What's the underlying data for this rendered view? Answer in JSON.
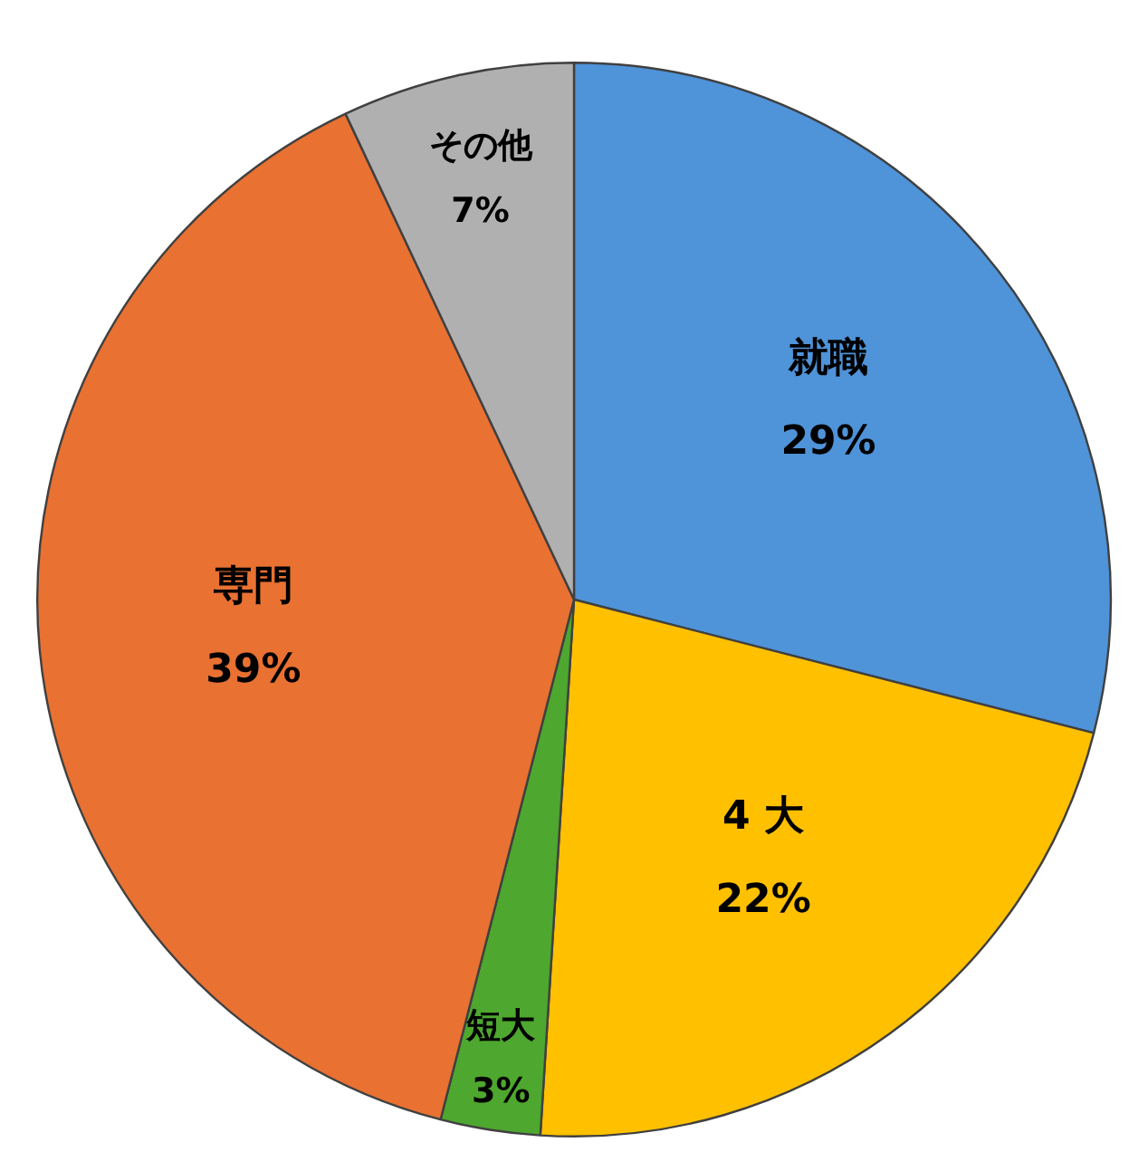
{
  "chart_data": {
    "type": "pie",
    "categories": [
      "就職",
      "4 大",
      "短大",
      "専門",
      "その他"
    ],
    "values": [
      29,
      22,
      3,
      39,
      7
    ],
    "colors": [
      "#4f93d9",
      "#ffc000",
      "#4ea72e",
      "#e97132",
      "#b0b0b0"
    ],
    "value_labels": [
      "29%",
      "22%",
      "3%",
      "39%",
      "7%"
    ],
    "legend": false
  }
}
